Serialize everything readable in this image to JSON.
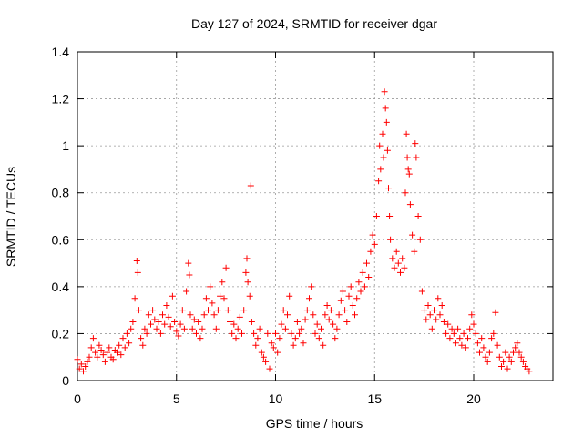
{
  "chart_data": {
    "type": "scatter",
    "title": "Day 127 of 2024, SRMTID for receiver dgar",
    "xlabel": "GPS time / hours",
    "ylabel": "SRMTID / TECUs",
    "xlim": [
      0,
      24
    ],
    "ylim": [
      0,
      1.4
    ],
    "xticks": [
      0,
      5,
      10,
      15,
      20
    ],
    "yticks": [
      0,
      0.2,
      0.4,
      0.6,
      0.8,
      1,
      1.2,
      1.4
    ],
    "ytick_labels": [
      "0",
      "0.2",
      "0.4",
      "0.6",
      "0.8",
      "1",
      "1.2",
      "1.4"
    ],
    "grid": true,
    "marker": "+",
    "color": "#ff0000",
    "series": [
      {
        "name": "SRMTID",
        "points": [
          [
            0.0,
            0.09
          ],
          [
            0.1,
            0.05
          ],
          [
            0.2,
            0.07
          ],
          [
            0.3,
            0.04
          ],
          [
            0.4,
            0.06
          ],
          [
            0.5,
            0.08
          ],
          [
            0.6,
            0.1
          ],
          [
            0.7,
            0.14
          ],
          [
            0.8,
            0.18
          ],
          [
            0.9,
            0.12
          ],
          [
            1.0,
            0.1
          ],
          [
            1.1,
            0.15
          ],
          [
            1.2,
            0.13
          ],
          [
            1.3,
            0.11
          ],
          [
            1.4,
            0.08
          ],
          [
            1.5,
            0.12
          ],
          [
            1.6,
            0.14
          ],
          [
            1.7,
            0.1
          ],
          [
            1.8,
            0.09
          ],
          [
            1.9,
            0.13
          ],
          [
            2.0,
            0.12
          ],
          [
            2.1,
            0.15
          ],
          [
            2.2,
            0.11
          ],
          [
            2.3,
            0.18
          ],
          [
            2.4,
            0.14
          ],
          [
            2.5,
            0.2
          ],
          [
            2.6,
            0.16
          ],
          [
            2.7,
            0.22
          ],
          [
            2.8,
            0.25
          ],
          [
            2.9,
            0.35
          ],
          [
            3.0,
            0.51
          ],
          [
            3.05,
            0.46
          ],
          [
            3.1,
            0.3
          ],
          [
            3.2,
            0.18
          ],
          [
            3.3,
            0.15
          ],
          [
            3.4,
            0.22
          ],
          [
            3.5,
            0.2
          ],
          [
            3.6,
            0.28
          ],
          [
            3.7,
            0.24
          ],
          [
            3.8,
            0.3
          ],
          [
            3.9,
            0.26
          ],
          [
            4.0,
            0.22
          ],
          [
            4.1,
            0.25
          ],
          [
            4.2,
            0.2
          ],
          [
            4.3,
            0.28
          ],
          [
            4.4,
            0.24
          ],
          [
            4.5,
            0.32
          ],
          [
            4.6,
            0.27
          ],
          [
            4.7,
            0.23
          ],
          [
            4.8,
            0.36
          ],
          [
            4.9,
            0.25
          ],
          [
            5.0,
            0.21
          ],
          [
            5.1,
            0.19
          ],
          [
            5.2,
            0.24
          ],
          [
            5.3,
            0.3
          ],
          [
            5.4,
            0.22
          ],
          [
            5.5,
            0.38
          ],
          [
            5.6,
            0.5
          ],
          [
            5.65,
            0.45
          ],
          [
            5.7,
            0.28
          ],
          [
            5.8,
            0.22
          ],
          [
            5.9,
            0.26
          ],
          [
            6.0,
            0.2
          ],
          [
            6.1,
            0.25
          ],
          [
            6.2,
            0.18
          ],
          [
            6.3,
            0.22
          ],
          [
            6.4,
            0.28
          ],
          [
            6.5,
            0.35
          ],
          [
            6.6,
            0.3
          ],
          [
            6.7,
            0.4
          ],
          [
            6.8,
            0.33
          ],
          [
            6.9,
            0.28
          ],
          [
            7.0,
            0.22
          ],
          [
            7.1,
            0.3
          ],
          [
            7.2,
            0.36
          ],
          [
            7.3,
            0.42
          ],
          [
            7.4,
            0.35
          ],
          [
            7.5,
            0.48
          ],
          [
            7.6,
            0.3
          ],
          [
            7.7,
            0.25
          ],
          [
            7.8,
            0.2
          ],
          [
            7.9,
            0.24
          ],
          [
            8.0,
            0.18
          ],
          [
            8.1,
            0.22
          ],
          [
            8.2,
            0.27
          ],
          [
            8.3,
            0.2
          ],
          [
            8.4,
            0.3
          ],
          [
            8.5,
            0.46
          ],
          [
            8.55,
            0.52
          ],
          [
            8.6,
            0.42
          ],
          [
            8.7,
            0.36
          ],
          [
            8.75,
            0.83
          ],
          [
            8.8,
            0.25
          ],
          [
            8.9,
            0.2
          ],
          [
            9.0,
            0.15
          ],
          [
            9.1,
            0.18
          ],
          [
            9.2,
            0.22
          ],
          [
            9.3,
            0.12
          ],
          [
            9.4,
            0.1
          ],
          [
            9.5,
            0.08
          ],
          [
            9.6,
            0.2
          ],
          [
            9.7,
            0.05
          ],
          [
            9.8,
            0.16
          ],
          [
            9.9,
            0.14
          ],
          [
            10.0,
            0.2
          ],
          [
            10.1,
            0.12
          ],
          [
            10.2,
            0.18
          ],
          [
            10.3,
            0.24
          ],
          [
            10.4,
            0.3
          ],
          [
            10.5,
            0.22
          ],
          [
            10.6,
            0.28
          ],
          [
            10.7,
            0.36
          ],
          [
            10.8,
            0.2
          ],
          [
            10.9,
            0.15
          ],
          [
            11.0,
            0.18
          ],
          [
            11.1,
            0.25
          ],
          [
            11.2,
            0.2
          ],
          [
            11.3,
            0.22
          ],
          [
            11.4,
            0.16
          ],
          [
            11.5,
            0.26
          ],
          [
            11.6,
            0.3
          ],
          [
            11.7,
            0.35
          ],
          [
            11.8,
            0.4
          ],
          [
            11.9,
            0.28
          ],
          [
            12.0,
            0.2
          ],
          [
            12.1,
            0.24
          ],
          [
            12.2,
            0.18
          ],
          [
            12.3,
            0.22
          ],
          [
            12.4,
            0.15
          ],
          [
            12.5,
            0.28
          ],
          [
            12.6,
            0.32
          ],
          [
            12.7,
            0.26
          ],
          [
            12.8,
            0.3
          ],
          [
            12.9,
            0.24
          ],
          [
            13.0,
            0.18
          ],
          [
            13.1,
            0.22
          ],
          [
            13.2,
            0.28
          ],
          [
            13.3,
            0.34
          ],
          [
            13.4,
            0.38
          ],
          [
            13.5,
            0.3
          ],
          [
            13.6,
            0.25
          ],
          [
            13.7,
            0.36
          ],
          [
            13.8,
            0.4
          ],
          [
            13.9,
            0.32
          ],
          [
            14.0,
            0.28
          ],
          [
            14.1,
            0.35
          ],
          [
            14.2,
            0.42
          ],
          [
            14.3,
            0.38
          ],
          [
            14.4,
            0.46
          ],
          [
            14.5,
            0.4
          ],
          [
            14.6,
            0.5
          ],
          [
            14.7,
            0.44
          ],
          [
            14.8,
            0.55
          ],
          [
            14.9,
            0.62
          ],
          [
            15.0,
            0.58
          ],
          [
            15.1,
            0.7
          ],
          [
            15.2,
            0.85
          ],
          [
            15.25,
            1.0
          ],
          [
            15.3,
            0.9
          ],
          [
            15.4,
            1.05
          ],
          [
            15.45,
            0.95
          ],
          [
            15.5,
            1.23
          ],
          [
            15.55,
            1.16
          ],
          [
            15.6,
            1.1
          ],
          [
            15.65,
            0.98
          ],
          [
            15.7,
            0.82
          ],
          [
            15.75,
            0.7
          ],
          [
            15.8,
            0.6
          ],
          [
            15.9,
            0.52
          ],
          [
            16.0,
            0.48
          ],
          [
            16.1,
            0.55
          ],
          [
            16.2,
            0.5
          ],
          [
            16.3,
            0.46
          ],
          [
            16.4,
            0.52
          ],
          [
            16.5,
            0.48
          ],
          [
            16.55,
            0.8
          ],
          [
            16.6,
            1.05
          ],
          [
            16.65,
            0.95
          ],
          [
            16.7,
            0.9
          ],
          [
            16.75,
            0.88
          ],
          [
            16.8,
            0.75
          ],
          [
            16.9,
            0.62
          ],
          [
            17.0,
            0.55
          ],
          [
            17.05,
            1.01
          ],
          [
            17.1,
            0.95
          ],
          [
            17.2,
            0.7
          ],
          [
            17.3,
            0.6
          ],
          [
            17.4,
            0.38
          ],
          [
            17.5,
            0.3
          ],
          [
            17.6,
            0.26
          ],
          [
            17.7,
            0.32
          ],
          [
            17.8,
            0.28
          ],
          [
            17.9,
            0.22
          ],
          [
            18.0,
            0.3
          ],
          [
            18.1,
            0.26
          ],
          [
            18.2,
            0.35
          ],
          [
            18.3,
            0.28
          ],
          [
            18.4,
            0.32
          ],
          [
            18.5,
            0.25
          ],
          [
            18.6,
            0.2
          ],
          [
            18.7,
            0.24
          ],
          [
            18.8,
            0.18
          ],
          [
            18.9,
            0.22
          ],
          [
            19.0,
            0.2
          ],
          [
            19.1,
            0.16
          ],
          [
            19.2,
            0.22
          ],
          [
            19.3,
            0.18
          ],
          [
            19.4,
            0.15
          ],
          [
            19.5,
            0.2
          ],
          [
            19.6,
            0.14
          ],
          [
            19.7,
            0.18
          ],
          [
            19.8,
            0.22
          ],
          [
            19.9,
            0.28
          ],
          [
            20.0,
            0.24
          ],
          [
            20.1,
            0.2
          ],
          [
            20.2,
            0.16
          ],
          [
            20.3,
            0.12
          ],
          [
            20.4,
            0.18
          ],
          [
            20.5,
            0.14
          ],
          [
            20.6,
            0.1
          ],
          [
            20.7,
            0.08
          ],
          [
            20.8,
            0.12
          ],
          [
            20.9,
            0.18
          ],
          [
            21.0,
            0.2
          ],
          [
            21.1,
            0.29
          ],
          [
            21.2,
            0.15
          ],
          [
            21.3,
            0.1
          ],
          [
            21.4,
            0.06
          ],
          [
            21.5,
            0.08
          ],
          [
            21.6,
            0.12
          ],
          [
            21.7,
            0.05
          ],
          [
            21.8,
            0.1
          ],
          [
            21.9,
            0.08
          ],
          [
            22.0,
            0.12
          ],
          [
            22.1,
            0.14
          ],
          [
            22.2,
            0.16
          ],
          [
            22.3,
            0.12
          ],
          [
            22.4,
            0.1
          ],
          [
            22.5,
            0.08
          ],
          [
            22.6,
            0.06
          ],
          [
            22.7,
            0.05
          ],
          [
            22.8,
            0.04
          ]
        ]
      }
    ]
  }
}
